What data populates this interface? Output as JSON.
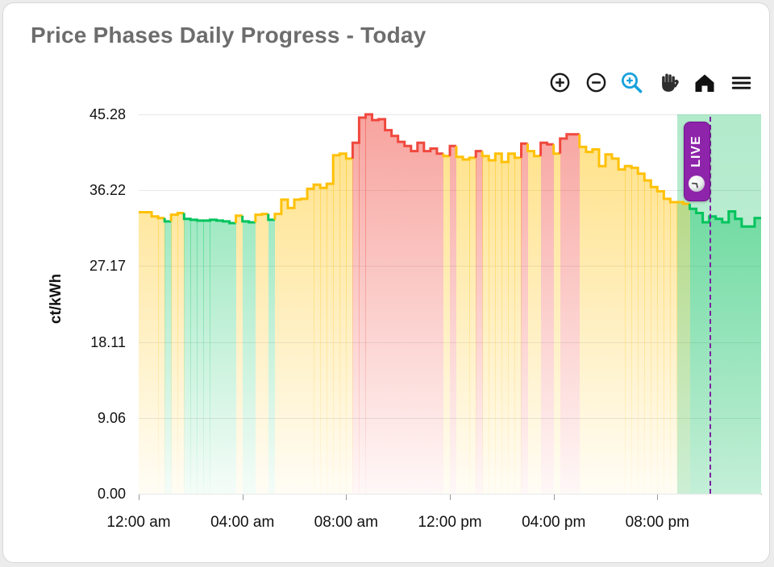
{
  "page": {
    "title": "Price Phases Daily Progress - Today"
  },
  "toolbar": {
    "icon_color": "#1a1a1a",
    "active_color": "#17A1DC",
    "items": [
      {
        "name": "zoom-in",
        "active": false
      },
      {
        "name": "zoom-out",
        "active": false
      },
      {
        "name": "box-zoom",
        "active": true
      },
      {
        "name": "pan",
        "active": false
      },
      {
        "name": "reset-home",
        "active": false
      },
      {
        "name": "menu",
        "active": false
      }
    ]
  },
  "live_badge": {
    "label": "LIVE",
    "color": "#8E24AA"
  },
  "chart_data": {
    "type": "area",
    "title": "Price Phases Daily Progress - Today",
    "xlabel": "",
    "ylabel": "ct/kWh",
    "ylim": [
      0,
      45.28
    ],
    "grid": true,
    "yticks": [
      "0.00",
      "9.06",
      "18.11",
      "27.17",
      "36.22",
      "45.28"
    ],
    "ytick_values": [
      0,
      9.06,
      18.11,
      27.17,
      36.22,
      45.28
    ],
    "xticks": [
      "12:00 am",
      "04:00 am",
      "08:00 am",
      "12:00 pm",
      "04:00 pm",
      "08:00 pm"
    ],
    "x_start": "12:00 am",
    "x_interval_minutes": 15,
    "step_values": [
      33.6,
      33.6,
      33.1,
      32.9,
      32.5,
      33.3,
      33.5,
      32.8,
      32.7,
      32.6,
      32.6,
      32.7,
      32.6,
      32.5,
      32.3,
      33.2,
      32.5,
      32.4,
      33.3,
      33.4,
      32.7,
      33.4,
      35.1,
      34.1,
      35.1,
      35.2,
      36.4,
      36.9,
      36.5,
      37.0,
      40.4,
      40.6,
      40.0,
      41.9,
      44.9,
      45.28,
      44.6,
      44.7,
      43.4,
      42.7,
      42.0,
      41.5,
      40.9,
      41.9,
      40.9,
      41.2,
      40.6,
      40.3,
      41.5,
      40.2,
      39.9,
      40.1,
      40.9,
      40.3,
      39.8,
      40.6,
      39.6,
      40.6,
      40.1,
      41.8,
      40.9,
      40.3,
      41.9,
      41.7,
      40.6,
      42.4,
      42.9,
      42.9,
      41.4,
      40.8,
      41.1,
      39.1,
      40.5,
      40.0,
      38.7,
      39.1,
      38.9,
      38.2,
      37.4,
      36.6,
      36.1,
      35.2,
      34.8,
      34.8,
      34.6,
      34.0,
      33.5,
      32.4,
      33.1,
      32.8,
      32.4,
      33.7,
      32.8,
      31.9,
      31.9,
      32.9
    ],
    "step_phases": "yyyygyyggggggggyggyygyyyyyyyyyyyyrrrrrrrrrrrrrryryyyryyyyyyryyrryrrryyyyyyyyyyyyyyyyyggggggggggg",
    "phase_colors": {
      "g": "#00C35C",
      "y": "#FFC107",
      "r": "#F0483E"
    },
    "legend": null,
    "now_index": 88,
    "active_zone_start_index": 83,
    "zone_color_rgb": "0,185,85",
    "zone_alpha_top": 0.3,
    "zone_alpha_bottom": 0.2,
    "now_line_color": "#7B1FA2"
  }
}
